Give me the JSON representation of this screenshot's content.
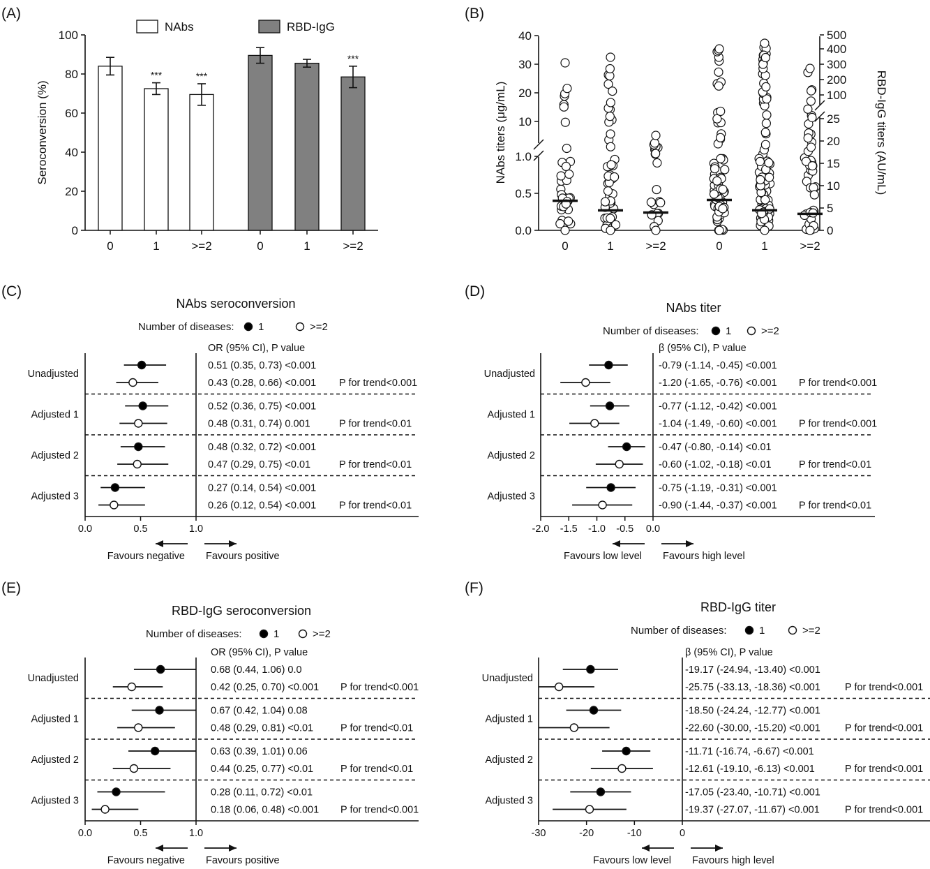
{
  "panels": {
    "A": "(A)",
    "B": "(B)",
    "C": "(C)",
    "D": "(D)",
    "E": "(E)",
    "F": "(F)"
  },
  "colors": {
    "ink": "#111111",
    "bar_nabs": "#ffffff",
    "bar_rbd": "#808080",
    "open_point": "#ffffff",
    "filled_point": "#000000"
  },
  "chart_data": [
    {
      "id": "A",
      "type": "bar",
      "ylabel": "Seroconversion (%)",
      "ylim": [
        0,
        100
      ],
      "yticks": [
        0,
        20,
        40,
        60,
        80,
        100
      ],
      "groups": [
        "0",
        "1",
        ">=2"
      ],
      "series": [
        {
          "name": "NAbs",
          "categories": [
            "0",
            "1",
            ">=2"
          ],
          "values": [
            84,
            72.5,
            69.5
          ],
          "err_low": [
            79.5,
            69.5,
            64
          ],
          "err_high": [
            88.5,
            75.5,
            75
          ],
          "annotations": [
            "",
            "***",
            "***"
          ]
        },
        {
          "name": "RBD-IgG",
          "categories": [
            "0",
            "1",
            ">=2"
          ],
          "values": [
            89.5,
            85.5,
            78.5
          ],
          "err_low": [
            85.5,
            83.5,
            73
          ],
          "err_high": [
            93.5,
            87.5,
            84
          ],
          "annotations": [
            "",
            "",
            "***"
          ]
        }
      ]
    },
    {
      "id": "B",
      "type": "scatter",
      "ylabel_left": "NAbs titers (μg/mL)",
      "ylabel_right": "RBD-IgG titers (AU/mL)",
      "left_ticks_lower": [
        "0.0",
        "0.5",
        "1.0"
      ],
      "left_ticks_upper": [
        "10",
        "20",
        "30",
        "40"
      ],
      "right_ticks_lower": [
        "0",
        "5",
        "10",
        "15",
        "20",
        "25"
      ],
      "right_ticks_upper": [
        "100",
        "200",
        "300",
        "400",
        "500"
      ],
      "categories": [
        "0",
        "1",
        ">=2",
        "0",
        "1",
        ">=2"
      ],
      "medians_left": [
        0.4,
        0.27,
        0.24
      ],
      "medians_right": [
        6.8,
        4.5,
        3.7
      ]
    },
    {
      "id": "C",
      "type": "forest",
      "title": "NAbs seroconversion",
      "legend_label": "Number of diseases:",
      "legend_items": [
        "1",
        ">=2"
      ],
      "header": "OR (95% CI), P value",
      "xlim": [
        0,
        1
      ],
      "xticks": [
        "0.0",
        "0.5",
        "1.0"
      ],
      "favour_left": "Favours negative",
      "favour_right": "Favours positive",
      "groups": [
        {
          "label": "Unadjusted",
          "rows": [
            {
              "est": 0.51,
              "lo": 0.35,
              "hi": 0.73,
              "text": "0.51 (0.35, 0.73) <0.001"
            },
            {
              "est": 0.43,
              "lo": 0.28,
              "hi": 0.66,
              "text": "0.43 (0.28, 0.66) <0.001"
            }
          ],
          "trend": "P for trend<0.001"
        },
        {
          "label": "Adjusted 1",
          "rows": [
            {
              "est": 0.52,
              "lo": 0.36,
              "hi": 0.75,
              "text": "0.52 (0.36, 0.75) <0.001"
            },
            {
              "est": 0.48,
              "lo": 0.31,
              "hi": 0.74,
              "text": "0.48 (0.31, 0.74) 0.001"
            }
          ],
          "trend": "P for trend<0.01"
        },
        {
          "label": "Adjusted 2",
          "rows": [
            {
              "est": 0.48,
              "lo": 0.32,
              "hi": 0.72,
              "text": "0.48 (0.32, 0.72) <0.001"
            },
            {
              "est": 0.47,
              "lo": 0.29,
              "hi": 0.75,
              "text": "0.47 (0.29, 0.75) <0.01"
            }
          ],
          "trend": "P for trend<0.01"
        },
        {
          "label": "Adjusted 3",
          "rows": [
            {
              "est": 0.27,
              "lo": 0.14,
              "hi": 0.54,
              "text": "0.27 (0.14, 0.54) <0.001"
            },
            {
              "est": 0.26,
              "lo": 0.12,
              "hi": 0.54,
              "text": "0.26 (0.12, 0.54) <0.001"
            }
          ],
          "trend": "P for trend<0.01"
        }
      ]
    },
    {
      "id": "D",
      "type": "forest",
      "title": "NAbs titer",
      "legend_label": "Number of diseases:",
      "legend_items": [
        "1",
        ">=2"
      ],
      "header": "β (95% CI), P value",
      "xlim": [
        -2,
        0
      ],
      "xticks": [
        "-2.0",
        "-1.5",
        "-1.0",
        "-0.5",
        "0.0"
      ],
      "favour_left": "Favours low level",
      "favour_right": "Favours high level",
      "groups": [
        {
          "label": "Unadjusted",
          "rows": [
            {
              "est": -0.79,
              "lo": -1.14,
              "hi": -0.45,
              "text": "-0.79 (-1.14, -0.45) <0.001"
            },
            {
              "est": -1.2,
              "lo": -1.65,
              "hi": -0.76,
              "text": "-1.20 (-1.65, -0.76) <0.001"
            }
          ],
          "trend": "P for trend<0.001"
        },
        {
          "label": "Adjusted 1",
          "rows": [
            {
              "est": -0.77,
              "lo": -1.12,
              "hi": -0.42,
              "text": "-0.77 (-1.12, -0.42) <0.001"
            },
            {
              "est": -1.04,
              "lo": -1.49,
              "hi": -0.6,
              "text": "-1.04 (-1.49, -0.60) <0.001"
            }
          ],
          "trend": "P for trend<0.001"
        },
        {
          "label": "Adjusted 2",
          "rows": [
            {
              "est": -0.47,
              "lo": -0.8,
              "hi": -0.14,
              "text": "-0.47 (-0.80, -0.14) <0.01"
            },
            {
              "est": -0.6,
              "lo": -1.02,
              "hi": -0.18,
              "text": "-0.60 (-1.02, -0.18) <0.01"
            }
          ],
          "trend": "P for trend<0.01"
        },
        {
          "label": "Adjusted 3",
          "rows": [
            {
              "est": -0.75,
              "lo": -1.19,
              "hi": -0.31,
              "text": "-0.75 (-1.19, -0.31) <0.001"
            },
            {
              "est": -0.9,
              "lo": -1.44,
              "hi": -0.37,
              "text": "-0.90 (-1.44, -0.37) <0.001"
            }
          ],
          "trend": "P for trend<0.01"
        }
      ]
    },
    {
      "id": "E",
      "type": "forest",
      "title": "RBD-IgG seroconversion",
      "legend_label": "Number of diseases:",
      "legend_items": [
        "1",
        ">=2"
      ],
      "header": "OR (95% CI), P value",
      "xlim": [
        0,
        1
      ],
      "xticks": [
        "0.0",
        "0.5",
        "1.0"
      ],
      "favour_left": "Favours negative",
      "favour_right": "Favours positive",
      "groups": [
        {
          "label": "Unadjusted",
          "rows": [
            {
              "est": 0.68,
              "lo": 0.44,
              "hi": 1.06,
              "text": "0.68 (0.44, 1.06) 0.0"
            },
            {
              "est": 0.42,
              "lo": 0.25,
              "hi": 0.7,
              "text": "0.42 (0.25, 0.70) <0.001"
            }
          ],
          "trend": "P for trend<0.001"
        },
        {
          "label": "Adjusted 1",
          "rows": [
            {
              "est": 0.67,
              "lo": 0.42,
              "hi": 1.04,
              "text": "0.67 (0.42, 1.04) 0.08"
            },
            {
              "est": 0.48,
              "lo": 0.29,
              "hi": 0.81,
              "text": "0.48 (0.29, 0.81) <0.01"
            }
          ],
          "trend": "P for trend<0.01"
        },
        {
          "label": "Adjusted 2",
          "rows": [
            {
              "est": 0.63,
              "lo": 0.39,
              "hi": 1.01,
              "text": "0.63 (0.39, 1.01) 0.06"
            },
            {
              "est": 0.44,
              "lo": 0.25,
              "hi": 0.77,
              "text": "0.44 (0.25, 0.77) <0.01"
            }
          ],
          "trend": "P for trend<0.01"
        },
        {
          "label": "Adjusted 3",
          "rows": [
            {
              "est": 0.28,
              "lo": 0.11,
              "hi": 0.72,
              "text": "0.28 (0.11, 0.72) <0.01"
            },
            {
              "est": 0.18,
              "lo": 0.06,
              "hi": 0.48,
              "text": "0.18 (0.06, 0.48) <0.001"
            }
          ],
          "trend": "P for trend<0.001"
        }
      ]
    },
    {
      "id": "F",
      "type": "forest",
      "title": "RBD-IgG titer",
      "legend_label": "Number of diseases:",
      "legend_items": [
        "1",
        ">=2"
      ],
      "header": "β (95% CI), P value",
      "xlim": [
        -30,
        0
      ],
      "xticks": [
        "-30",
        "-20",
        "-10",
        "0"
      ],
      "favour_left": "Favours low level",
      "favour_right": "Favours high level",
      "groups": [
        {
          "label": "Unadjusted",
          "rows": [
            {
              "est": -19.17,
              "lo": -24.94,
              "hi": -13.4,
              "text": "-19.17 (-24.94, -13.40) <0.001"
            },
            {
              "est": -25.75,
              "lo": -33.13,
              "hi": -18.36,
              "text": "-25.75 (-33.13, -18.36) <0.001"
            }
          ],
          "trend": "P for trend<0.001"
        },
        {
          "label": "Adjusted 1",
          "rows": [
            {
              "est": -18.5,
              "lo": -24.24,
              "hi": -12.77,
              "text": "-18.50 (-24.24, -12.77) <0.001"
            },
            {
              "est": -22.6,
              "lo": -30.0,
              "hi": -15.2,
              "text": "-22.60 (-30.00, -15.20) <0.001"
            }
          ],
          "trend": "P for trend<0.001"
        },
        {
          "label": "Adjusted 2",
          "rows": [
            {
              "est": -11.71,
              "lo": -16.74,
              "hi": -6.67,
              "text": "-11.71 (-16.74, -6.67) <0.001"
            },
            {
              "est": -12.61,
              "lo": -19.1,
              "hi": -6.13,
              "text": "-12.61 (-19.10, -6.13) <0.001"
            }
          ],
          "trend": "P for trend<0.001"
        },
        {
          "label": "Adjusted 3",
          "rows": [
            {
              "est": -17.05,
              "lo": -23.4,
              "hi": -10.71,
              "text": "-17.05 (-23.40, -10.71) <0.001"
            },
            {
              "est": -19.37,
              "lo": -27.07,
              "hi": -11.67,
              "text": "-19.37 (-27.07, -11.67) <0.001"
            }
          ],
          "trend": "P for trend<0.001"
        }
      ]
    }
  ]
}
